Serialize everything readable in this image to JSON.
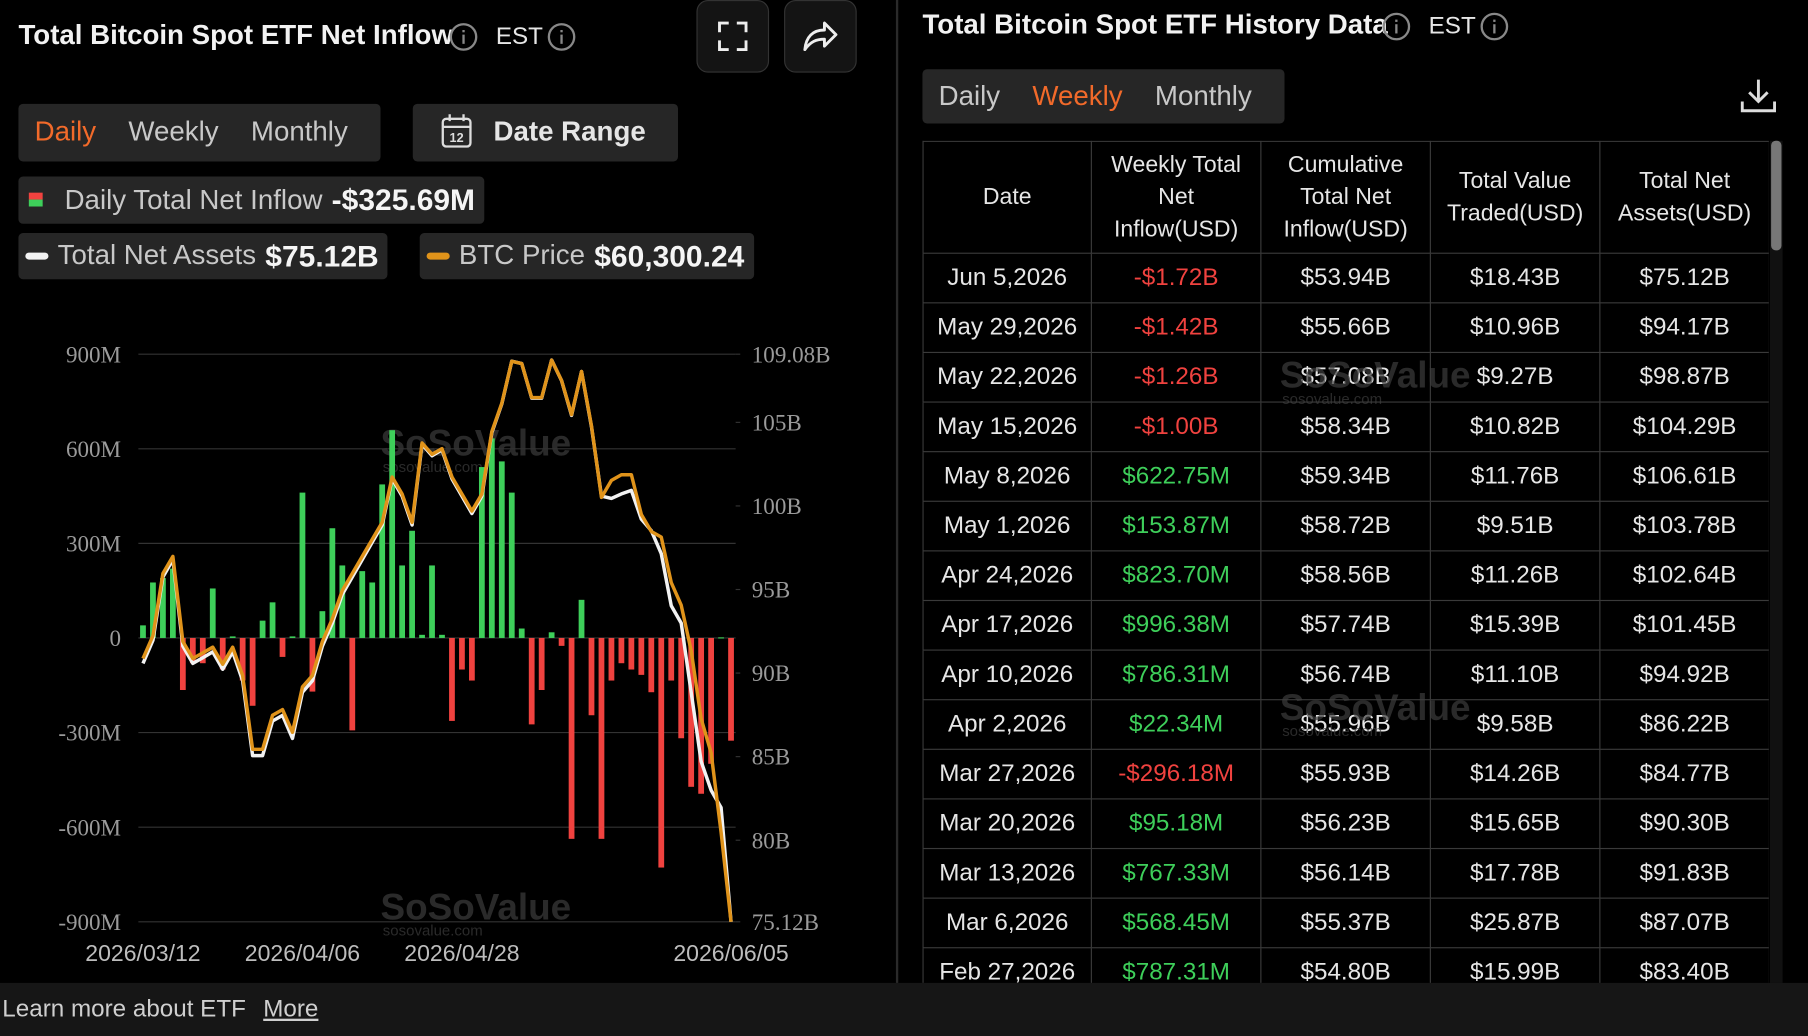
{
  "left": {
    "title": "Total Bitcoin Spot ETF Net Inflow",
    "tz": "EST",
    "tabs": [
      "Daily",
      "Weekly",
      "Monthly"
    ],
    "active_tab": 0,
    "date_range": "Date Range",
    "stat_labels": [
      "-$325.69M",
      "$75.12B",
      "$60,300.24"
    ],
    "watermark": "SoSoValue",
    "watermark_url": "sosovalue.com"
  },
  "chart_data": {
    "type": "bar",
    "categories": [
      "2026/03/12",
      null,
      null,
      null,
      null,
      null,
      null,
      null,
      null,
      null,
      null,
      null,
      null,
      null,
      null,
      null,
      "2026/04/06",
      null,
      null,
      null,
      null,
      null,
      null,
      null,
      null,
      null,
      null,
      null,
      null,
      null,
      null,
      null,
      "2026/04/28",
      null,
      null,
      null,
      null,
      null,
      null,
      null,
      null,
      null,
      null,
      null,
      null,
      null,
      null,
      null,
      null,
      null,
      null,
      null,
      null,
      null,
      null,
      null,
      null,
      null,
      null,
      "2026/06/05"
    ],
    "ylim": [
      -900,
      900
    ],
    "yticks": [
      {
        "value": -900,
        "label": "-900M"
      },
      {
        "value": -600,
        "label": "-600M"
      },
      {
        "value": -300,
        "label": "-300M"
      },
      0,
      {
        "value": 300,
        "label": "300M"
      },
      {
        "value": 600,
        "label": "600M"
      },
      {
        "value": 900,
        "label": "900M"
      }
    ],
    "y2lim": [
      75.12,
      109.08
    ],
    "y2ticks": [
      {
        "value": 75.12,
        "label": "75.12B"
      },
      {
        "value": 80,
        "label": "80B"
      },
      {
        "value": 85,
        "label": "85B"
      },
      {
        "value": 90,
        "label": "90B"
      },
      {
        "value": 95,
        "label": "95B"
      },
      {
        "value": 100,
        "label": "100B"
      },
      {
        "value": 105,
        "label": "105B"
      },
      {
        "value": 109.08,
        "label": "109.08B"
      }
    ],
    "y3lim": [
      60300.24,
      90500
    ],
    "grid": true,
    "series": [
      {
        "name": "Daily Total Net Inflow",
        "type": "bar",
        "color": "#3ecf5a",
        "negative_color": "#f0423f",
        "values": [
          40,
          176,
          190,
          220,
          -165,
          -80,
          -80,
          157,
          -100,
          5,
          -135,
          -215,
          55,
          113,
          -60,
          5,
          461,
          -170,
          85,
          348,
          230,
          -293,
          212,
          176,
          487,
          659,
          230,
          340,
          10,
          230,
          10,
          -263,
          -100,
          -135,
          542,
          633,
          560,
          461,
          30,
          -274,
          -165,
          18,
          -25,
          -637,
          121,
          -245,
          -637,
          -135,
          -80,
          -100,
          -117,
          -172,
          -728,
          -135,
          -318,
          -472,
          -494,
          -399,
          2,
          -325.69
        ]
      },
      {
        "name": "Total Net Assets",
        "type": "line",
        "axis": "y2",
        "color": "#f2f2f2",
        "values": [
          90.58,
          91.96,
          95.75,
          96.79,
          91.61,
          90.58,
          90.92,
          91.27,
          90.23,
          91.27,
          89.54,
          85.06,
          85.06,
          87.13,
          87.47,
          86.09,
          88.85,
          89.54,
          91.61,
          92.99,
          94.71,
          95.75,
          96.79,
          97.83,
          98.86,
          101.62,
          100.59,
          98.86,
          103.69,
          103.0,
          103.35,
          101.62,
          100.59,
          99.55,
          100.59,
          104.38,
          106.1,
          108.66,
          108.52,
          106.45,
          106.45,
          108.73,
          107.49,
          105.42,
          108.04,
          104.73,
          100.59,
          100.45,
          100.72,
          100.93,
          99.21,
          98.52,
          97.14,
          94.03,
          92.99,
          88.85,
          84.71,
          82.99,
          81.95,
          75.12
        ]
      },
      {
        "name": "BTC Price",
        "type": "line",
        "axis": "y3",
        "color": "#e0931a",
        "values": [
          74306,
          75513,
          78834,
          79739,
          75212,
          74306,
          74608,
          74910,
          74004,
          74910,
          73400,
          69476,
          69476,
          71287,
          71589,
          70382,
          72797,
          73400,
          75212,
          76419,
          77928,
          78834,
          79739,
          80645,
          81550,
          83965,
          83060,
          81550,
          85776,
          85172,
          85474,
          83965,
          83060,
          82154,
          83060,
          86380,
          87889,
          90123,
          90003,
          88191,
          88191,
          90184,
          89097,
          87286,
          89580,
          86682,
          82879,
          83784,
          84086,
          84086,
          81973,
          81067,
          80765,
          78351,
          77143,
          74729,
          71106,
          69295,
          65069,
          60300.24
        ]
      }
    ]
  },
  "right": {
    "title": "Total Bitcoin Spot ETF History Data",
    "tz": "EST",
    "tabs": [
      "Daily",
      "Weekly",
      "Monthly"
    ],
    "active_tab": 1,
    "table": {
      "columns": [
        "Date",
        "Weekly Total Net Inflow(USD)",
        "Cumulative Total Net Inflow(USD)",
        "Total Value Traded(USD)",
        "Total Net Assets(USD)"
      ],
      "rows": [
        [
          "Jun 5,2026",
          "-$1.72B",
          "$53.94B",
          "$18.43B",
          "$75.12B"
        ],
        [
          "May 29,2026",
          "-$1.42B",
          "$55.66B",
          "$10.96B",
          "$94.17B"
        ],
        [
          "May 22,2026",
          "-$1.26B",
          "$57.08B",
          "$9.27B",
          "$98.87B"
        ],
        [
          "May 15,2026",
          "-$1.00B",
          "$58.34B",
          "$10.82B",
          "$104.29B"
        ],
        [
          "May 8,2026",
          "$622.75M",
          "$59.34B",
          "$11.76B",
          "$106.61B"
        ],
        [
          "May 1,2026",
          "$153.87M",
          "$58.72B",
          "$9.51B",
          "$103.78B"
        ],
        [
          "Apr 24,2026",
          "$823.70M",
          "$58.56B",
          "$11.26B",
          "$102.64B"
        ],
        [
          "Apr 17,2026",
          "$996.38M",
          "$57.74B",
          "$15.39B",
          "$101.45B"
        ],
        [
          "Apr 10,2026",
          "$786.31M",
          "$56.74B",
          "$11.10B",
          "$94.92B"
        ],
        [
          "Apr 2,2026",
          "$22.34M",
          "$55.96B",
          "$9.58B",
          "$86.22B"
        ],
        [
          "Mar 27,2026",
          "-$296.18M",
          "$55.93B",
          "$14.26B",
          "$84.77B"
        ],
        [
          "Mar 20,2026",
          "$95.18M",
          "$56.23B",
          "$15.65B",
          "$90.30B"
        ],
        [
          "Mar 13,2026",
          "$767.33M",
          "$56.14B",
          "$17.78B",
          "$91.83B"
        ],
        [
          "Mar 6,2026",
          "$568.45M",
          "$55.37B",
          "$25.87B",
          "$87.07B"
        ],
        [
          "Feb 27,2026",
          "$787.31M",
          "$54.80B",
          "$15.99B",
          "$83.40B"
        ]
      ]
    }
  },
  "footer": {
    "text": "Learn more about ETF",
    "link": "More"
  }
}
